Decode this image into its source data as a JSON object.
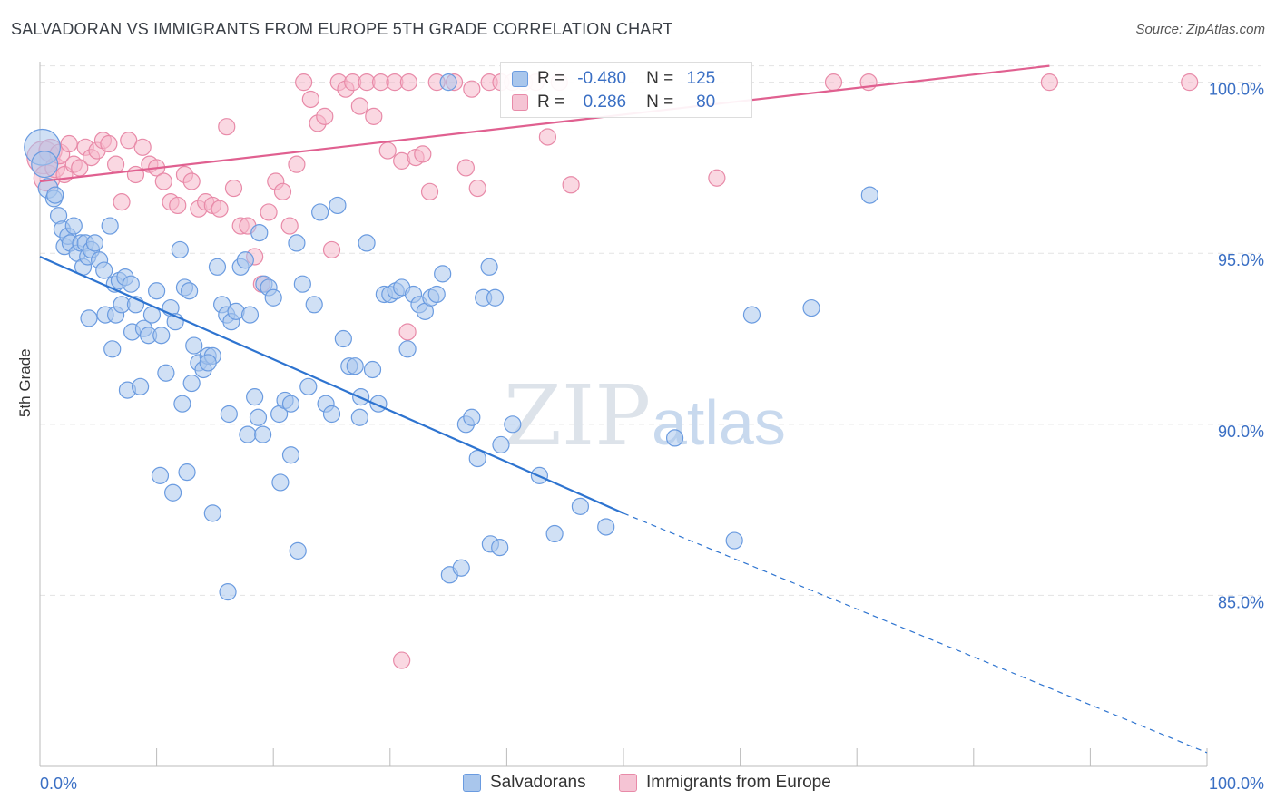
{
  "title": "SALVADORAN VS IMMIGRANTS FROM EUROPE 5TH GRADE CORRELATION CHART",
  "source": "Source: ZipAtlas.com",
  "watermark": {
    "zip": "ZIP",
    "atlas": "atlas"
  },
  "colors": {
    "blue_fill": "#a9c6ec",
    "blue_stroke": "#6a9be0",
    "blue_line": "#2e74d0",
    "pink_fill": "#f5b8cb",
    "pink_stroke": "#e88aa8",
    "pink_line": "#e06090",
    "grid": "#e3e3e3",
    "tick_label": "#3a6fc4"
  },
  "legend_stats": [
    {
      "r_label": "R =",
      "r_value": "-0.480",
      "n_label": "N =",
      "n_value": "125",
      "series": "blue"
    },
    {
      "r_label": "R =",
      "r_value": "0.286",
      "n_label": "N =",
      "n_value": "80",
      "series": "pink"
    }
  ],
  "legend_bottom": [
    {
      "label": "Salvadorans",
      "series": "blue"
    },
    {
      "label": "Immigrants from Europe",
      "series": "pink"
    }
  ],
  "chart_data": {
    "type": "scatter",
    "title": "SALVADORAN VS IMMIGRANTS FROM EUROPE 5TH GRADE CORRELATION CHART",
    "xlabel": "",
    "ylabel": "5th Grade",
    "xlim": [
      0,
      100
    ],
    "ylim": [
      80.0,
      100.6
    ],
    "x_tick_labels": [
      "0.0%",
      "100.0%"
    ],
    "y_ticks": [
      85.0,
      90.0,
      95.0,
      100.0
    ],
    "y_tick_labels": [
      "85.0%",
      "90.0%",
      "95.0%",
      "100.0%"
    ],
    "grid": true,
    "series": [
      {
        "name": "Salvadorans",
        "color": "blue",
        "r": -0.48,
        "n": 125,
        "trend": {
          "x0": 0,
          "y0": 94.9,
          "x1": 50,
          "y1": 87.4,
          "dashed_to_x": 100,
          "dashed_to_y": 80.4
        },
        "points": [
          [
            0.2,
            98.1,
            2.2
          ],
          [
            0.4,
            97.6,
            1.6
          ],
          [
            0.7,
            96.9,
            1.2
          ],
          [
            1.2,
            96.6,
            1
          ],
          [
            1.3,
            96.7,
            1
          ],
          [
            1.6,
            96.1,
            1
          ],
          [
            1.9,
            95.7,
            1
          ],
          [
            2.1,
            95.2,
            1
          ],
          [
            2.4,
            95.5,
            1
          ],
          [
            2.6,
            95.3,
            1
          ],
          [
            2.9,
            95.8,
            1
          ],
          [
            3.2,
            95.0,
            1
          ],
          [
            3.5,
            95.3,
            1
          ],
          [
            3.7,
            94.6,
            1
          ],
          [
            3.9,
            95.3,
            1
          ],
          [
            4.1,
            94.9,
            1
          ],
          [
            4.4,
            95.1,
            1
          ],
          [
            4.7,
            95.3,
            1
          ],
          [
            5.1,
            94.8,
            1
          ],
          [
            5.5,
            94.5,
            1
          ],
          [
            6.0,
            95.8,
            1
          ],
          [
            6.4,
            94.1,
            1
          ],
          [
            6.8,
            94.2,
            1
          ],
          [
            7.3,
            94.3,
            1
          ],
          [
            7.8,
            94.1,
            1
          ],
          [
            4.2,
            93.1,
            1
          ],
          [
            5.6,
            93.2,
            1
          ],
          [
            6.2,
            92.2,
            1
          ],
          [
            6.5,
            93.2,
            1
          ],
          [
            7.0,
            93.5,
            1
          ],
          [
            7.5,
            91.0,
            1
          ],
          [
            7.9,
            92.7,
            1
          ],
          [
            8.2,
            93.5,
            1
          ],
          [
            8.6,
            91.1,
            1
          ],
          [
            8.9,
            92.8,
            1
          ],
          [
            9.3,
            92.6,
            1
          ],
          [
            9.6,
            93.2,
            1
          ],
          [
            10.0,
            93.9,
            1
          ],
          [
            10.4,
            92.6,
            1
          ],
          [
            10.8,
            91.5,
            1
          ],
          [
            11.2,
            93.4,
            1
          ],
          [
            11.6,
            93.0,
            1
          ],
          [
            12.0,
            95.1,
            1
          ],
          [
            12.4,
            94.0,
            1
          ],
          [
            12.8,
            93.9,
            1
          ],
          [
            13.2,
            92.3,
            1
          ],
          [
            13.6,
            91.8,
            1
          ],
          [
            14.0,
            91.6,
            1
          ],
          [
            14.4,
            92.0,
            1
          ],
          [
            14.8,
            92.0,
            1
          ],
          [
            15.2,
            94.6,
            1
          ],
          [
            15.6,
            93.5,
            1
          ],
          [
            16.0,
            93.2,
            1
          ],
          [
            16.4,
            93.0,
            1
          ],
          [
            16.8,
            93.3,
            1
          ],
          [
            17.2,
            94.6,
            1
          ],
          [
            17.6,
            94.8,
            1
          ],
          [
            18.0,
            93.2,
            1
          ],
          [
            18.4,
            90.8,
            1
          ],
          [
            18.8,
            95.6,
            1
          ],
          [
            19.2,
            94.1,
            1
          ],
          [
            19.6,
            94.0,
            1
          ],
          [
            20.0,
            93.7,
            1
          ],
          [
            20.5,
            90.3,
            1
          ],
          [
            21.0,
            90.7,
            1
          ],
          [
            21.5,
            90.6,
            1
          ],
          [
            22.0,
            95.3,
            1
          ],
          [
            22.5,
            94.1,
            1
          ],
          [
            23.0,
            91.1,
            1
          ],
          [
            23.5,
            93.5,
            1
          ],
          [
            24.0,
            96.2,
            1
          ],
          [
            24.5,
            90.6,
            1
          ],
          [
            25.0,
            90.3,
            1
          ],
          [
            25.5,
            96.4,
            1
          ],
          [
            26.0,
            92.5,
            1
          ],
          [
            26.5,
            91.7,
            1
          ],
          [
            27.0,
            91.7,
            1
          ],
          [
            27.5,
            90.8,
            1
          ],
          [
            28.0,
            95.3,
            1
          ],
          [
            28.5,
            91.6,
            1
          ],
          [
            29.0,
            90.6,
            1
          ],
          [
            29.5,
            93.8,
            1
          ],
          [
            30.0,
            93.8,
            1
          ],
          [
            30.5,
            93.9,
            1
          ],
          [
            31.0,
            94.0,
            1
          ],
          [
            31.5,
            92.2,
            1
          ],
          [
            32.0,
            93.8,
            1
          ],
          [
            32.5,
            93.5,
            1
          ],
          [
            33.0,
            93.3,
            1
          ],
          [
            33.5,
            93.7,
            1
          ],
          [
            34.0,
            93.8,
            1
          ],
          [
            34.5,
            94.4,
            1
          ],
          [
            35.0,
            100.0,
            1
          ],
          [
            36.5,
            90.0,
            1
          ],
          [
            37.0,
            90.2,
            1
          ],
          [
            37.5,
            89.0,
            1
          ],
          [
            38.0,
            93.7,
            1
          ],
          [
            38.5,
            94.6,
            1
          ],
          [
            39.0,
            93.7,
            1
          ],
          [
            39.5,
            89.4,
            1
          ],
          [
            12.2,
            90.6,
            1
          ],
          [
            13.0,
            91.2,
            1
          ],
          [
            14.4,
            91.8,
            1
          ],
          [
            16.2,
            90.3,
            1
          ],
          [
            17.8,
            89.7,
            1
          ],
          [
            19.1,
            89.7,
            1
          ],
          [
            10.3,
            88.5,
            1
          ],
          [
            11.4,
            88.0,
            1
          ],
          [
            12.6,
            88.6,
            1
          ],
          [
            14.8,
            87.4,
            1
          ],
          [
            16.1,
            85.1,
            1
          ],
          [
            18.7,
            90.2,
            1
          ],
          [
            20.6,
            88.3,
            1
          ],
          [
            21.5,
            89.1,
            1
          ],
          [
            22.1,
            86.3,
            1
          ],
          [
            27.4,
            90.2,
            1
          ],
          [
            35.1,
            85.6,
            1
          ],
          [
            36.1,
            85.8,
            1
          ],
          [
            38.6,
            86.5,
            1
          ],
          [
            39.4,
            86.4,
            1
          ],
          [
            40.5,
            90.0,
            1
          ],
          [
            42.8,
            88.5,
            1
          ],
          [
            44.1,
            86.8,
            1
          ],
          [
            46.3,
            87.6,
            1
          ],
          [
            48.5,
            87.0,
            1
          ],
          [
            54.4,
            89.6,
            1
          ],
          [
            59.5,
            86.6,
            1
          ],
          [
            61.0,
            93.2,
            1
          ],
          [
            66.1,
            93.4,
            1
          ],
          [
            71.1,
            96.7,
            1
          ]
        ]
      },
      {
        "name": "Immigrants from Europe",
        "color": "pink",
        "r": 0.286,
        "n": 80,
        "trend": {
          "x0": 0,
          "y0": 97.1,
          "x1": 100,
          "y1": 100.0
        },
        "points": [
          [
            0.3,
            97.8,
            2.0
          ],
          [
            0.6,
            97.2,
            1.6
          ],
          [
            0.9,
            98.0,
            1.4
          ],
          [
            1.3,
            97.5,
            1.2
          ],
          [
            1.7,
            97.9,
            1.2
          ],
          [
            2.1,
            97.3,
            1
          ],
          [
            2.5,
            98.2,
            1
          ],
          [
            2.9,
            97.6,
            1
          ],
          [
            3.4,
            97.5,
            1
          ],
          [
            3.9,
            98.1,
            1
          ],
          [
            4.4,
            97.8,
            1
          ],
          [
            4.9,
            98.0,
            1
          ],
          [
            5.4,
            98.3,
            1
          ],
          [
            5.9,
            98.2,
            1
          ],
          [
            6.5,
            97.6,
            1
          ],
          [
            7.0,
            96.5,
            1
          ],
          [
            7.6,
            98.3,
            1
          ],
          [
            8.2,
            97.3,
            1
          ],
          [
            8.8,
            98.1,
            1
          ],
          [
            9.4,
            97.6,
            1
          ],
          [
            10.0,
            97.5,
            1
          ],
          [
            10.6,
            97.1,
            1
          ],
          [
            11.2,
            96.5,
            1
          ],
          [
            11.8,
            96.4,
            1
          ],
          [
            12.4,
            97.3,
            1
          ],
          [
            13.0,
            97.1,
            1
          ],
          [
            13.6,
            96.3,
            1
          ],
          [
            14.2,
            96.5,
            1
          ],
          [
            14.8,
            96.4,
            1
          ],
          [
            15.4,
            96.3,
            1
          ],
          [
            16.0,
            98.7,
            1
          ],
          [
            16.6,
            96.9,
            1
          ],
          [
            17.2,
            95.8,
            1
          ],
          [
            17.8,
            95.8,
            1
          ],
          [
            18.4,
            94.9,
            1
          ],
          [
            19.0,
            94.1,
            1
          ],
          [
            19.6,
            96.2,
            1
          ],
          [
            20.2,
            97.1,
            1
          ],
          [
            20.8,
            96.8,
            1
          ],
          [
            21.4,
            95.8,
            1
          ],
          [
            22.0,
            97.6,
            1
          ],
          [
            22.6,
            100.0,
            1
          ],
          [
            23.2,
            99.5,
            1
          ],
          [
            23.8,
            98.8,
            1
          ],
          [
            24.4,
            99.0,
            1
          ],
          [
            25.0,
            95.1,
            1
          ],
          [
            25.6,
            100.0,
            1
          ],
          [
            26.2,
            99.8,
            1
          ],
          [
            26.8,
            100.0,
            1
          ],
          [
            27.4,
            99.3,
            1
          ],
          [
            28.0,
            100.0,
            1
          ],
          [
            28.6,
            99.0,
            1
          ],
          [
            29.2,
            100.0,
            1
          ],
          [
            29.8,
            98.0,
            1
          ],
          [
            30.4,
            100.0,
            1
          ],
          [
            31.0,
            97.7,
            1
          ],
          [
            31.6,
            100.0,
            1
          ],
          [
            32.2,
            97.8,
            1
          ],
          [
            32.8,
            97.9,
            1
          ],
          [
            33.4,
            96.8,
            1
          ],
          [
            34.0,
            100.0,
            1
          ],
          [
            35.5,
            100.0,
            1
          ],
          [
            36.5,
            97.5,
            1
          ],
          [
            37.0,
            99.8,
            1
          ],
          [
            37.5,
            96.9,
            1
          ],
          [
            38.5,
            100.0,
            1
          ],
          [
            39.5,
            100.0,
            1
          ],
          [
            40.5,
            100.0,
            1
          ],
          [
            41.5,
            100.0,
            1
          ],
          [
            42.5,
            100.0,
            1
          ],
          [
            43.5,
            98.4,
            1
          ],
          [
            44.5,
            100.0,
            1
          ],
          [
            45.5,
            97.0,
            1
          ],
          [
            58.0,
            97.2,
            1
          ],
          [
            68.0,
            100.0,
            1
          ],
          [
            71.0,
            100.0,
            1
          ],
          [
            86.5,
            100.0,
            1
          ],
          [
            98.5,
            100.0,
            1
          ],
          [
            31.5,
            92.7,
            1
          ],
          [
            31.0,
            83.1,
            1
          ]
        ]
      }
    ]
  }
}
